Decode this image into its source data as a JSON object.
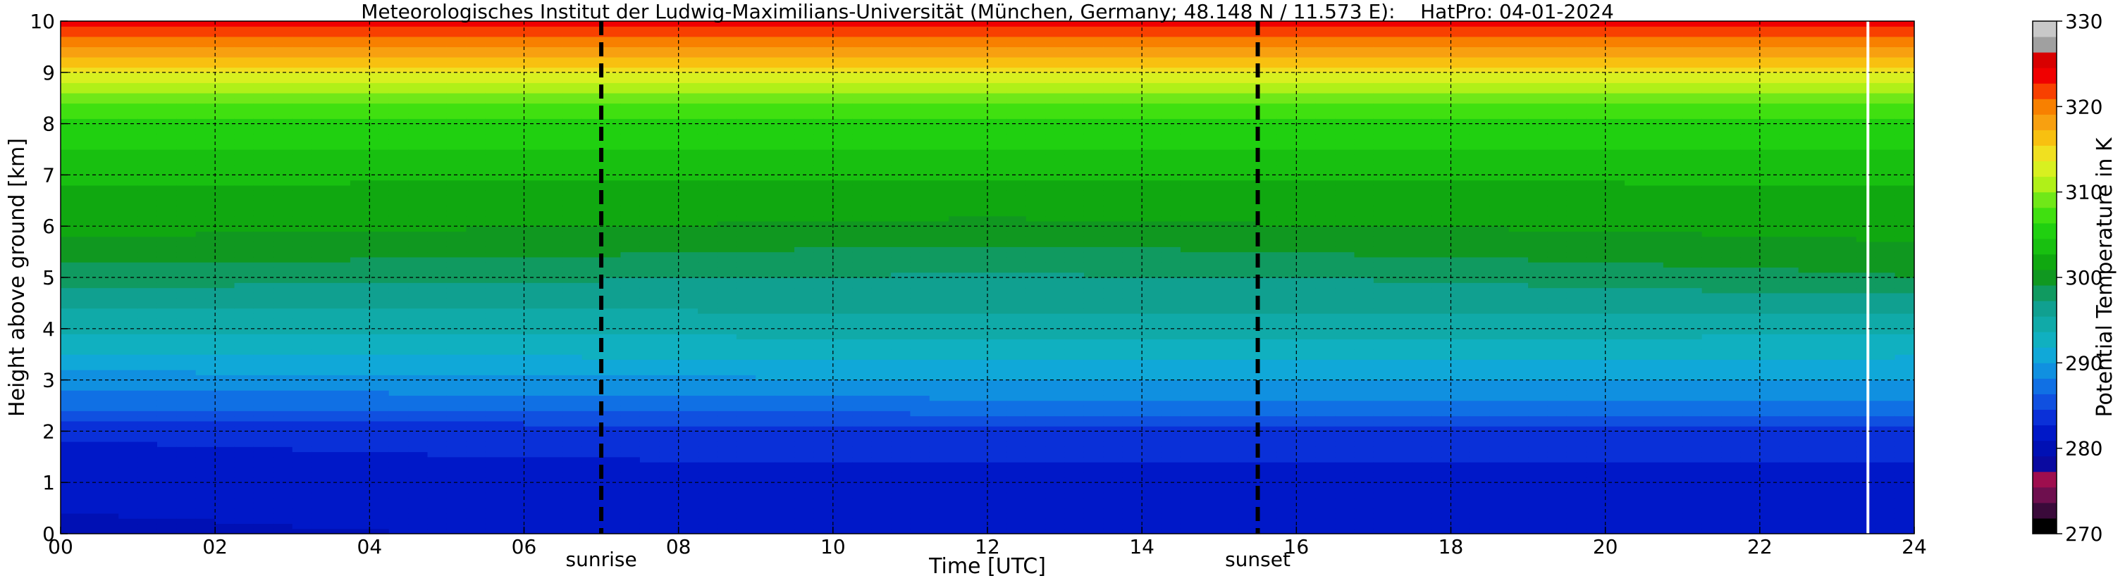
{
  "chart_data": {
    "type": "heatmap",
    "title": "Meteorologisches Institut der Ludwig-Maximilians-Universität (München, Germany; 48.148 N / 11.573 E):    HatPro: 04-01-2024",
    "xlabel": "Time [UTC]",
    "ylabel": "Height above ground [km]",
    "xlim": [
      0,
      24
    ],
    "ylim": [
      0,
      10
    ],
    "x_ticks": [
      "00",
      "02",
      "04",
      "06",
      "08",
      "10",
      "12",
      "14",
      "16",
      "18",
      "20",
      "22",
      "24"
    ],
    "x_tick_values": [
      0,
      2,
      4,
      6,
      8,
      10,
      12,
      14,
      16,
      18,
      20,
      22,
      24
    ],
    "y_ticks": [
      "0",
      "1",
      "2",
      "3",
      "4",
      "5",
      "6",
      "7",
      "8",
      "9",
      "10"
    ],
    "y_tick_values": [
      0,
      1,
      2,
      3,
      4,
      5,
      6,
      7,
      8,
      9,
      10
    ],
    "grid": true,
    "events": [
      {
        "label": "sunrise",
        "time": 7.0
      },
      {
        "label": "sunset",
        "time": 15.5
      }
    ],
    "data_gap_time": 23.4,
    "colorbar": {
      "label": "Potential Temperature in K",
      "range": [
        270,
        330
      ],
      "ticks": [
        "270",
        "280",
        "290",
        "300",
        "310",
        "320",
        "330"
      ],
      "tick_values": [
        270,
        280,
        290,
        300,
        310,
        320,
        330
      ],
      "colors": [
        "#000000",
        "#3a0a3a",
        "#6e0f4e",
        "#9e0e4e",
        "#0a0aa0",
        "#0010b4",
        "#0018c8",
        "#0a30d8",
        "#1050e0",
        "#1070e4",
        "#1090e0",
        "#10a8d8",
        "#10b0c0",
        "#10aaa8",
        "#10a090",
        "#109a60",
        "#109820",
        "#10a810",
        "#18c010",
        "#20d010",
        "#40e010",
        "#70e818",
        "#b0f018",
        "#d8f020",
        "#f0e020",
        "#f8c010",
        "#f8a010",
        "#f88000",
        "#f84000",
        "#f00000",
        "#d80000",
        "#a0a0a0",
        "#c8c8c8"
      ]
    },
    "profiles": [
      {
        "time": 0.0,
        "heights": [
          0,
          0.5,
          1,
          2,
          2.5,
          3,
          3.5,
          4,
          4.5,
          5,
          5.5,
          6,
          7,
          8,
          8.5,
          9,
          9.5,
          10
        ],
        "theta": [
          280.5,
          281,
          281.5,
          283,
          287,
          289,
          292,
          294,
          296,
          298,
          300,
          301.5,
          303,
          306,
          309,
          314,
          319,
          324
        ]
      },
      {
        "time": 6.0,
        "heights": [
          0,
          0.5,
          1,
          2,
          2.5,
          3,
          3.5,
          4,
          4.5,
          5,
          5.5,
          6,
          7,
          8,
          8.5,
          9,
          9.5,
          10
        ],
        "theta": [
          281,
          281.5,
          282,
          283.5,
          287,
          289.5,
          292,
          294,
          296,
          297.5,
          299.5,
          301,
          303,
          306,
          309,
          314,
          319,
          324
        ]
      },
      {
        "time": 12.0,
        "heights": [
          0,
          0.5,
          1,
          2,
          2.5,
          3,
          3.5,
          4,
          4.5,
          5,
          5.5,
          6,
          7,
          8,
          8.5,
          9,
          9.5,
          10
        ],
        "theta": [
          281,
          281.5,
          282,
          284,
          287.5,
          290,
          292.5,
          294.5,
          296,
          297,
          298.5,
          300.5,
          303,
          306,
          309,
          314,
          319,
          324
        ]
      },
      {
        "time": 18.0,
        "heights": [
          0,
          0.5,
          1,
          2,
          2.5,
          3,
          3.5,
          4,
          4.5,
          5,
          5.5,
          6,
          7,
          8,
          8.5,
          9,
          9.5,
          10
        ],
        "theta": [
          281,
          281.5,
          282,
          284,
          287.5,
          290,
          292.5,
          294.5,
          296,
          297.5,
          299.5,
          301,
          303,
          306,
          309,
          314,
          319,
          324
        ]
      },
      {
        "time": 24.0,
        "heights": [
          0,
          0.5,
          1,
          2,
          2.5,
          3,
          3.5,
          4,
          4.5,
          5,
          5.5,
          6,
          7,
          8,
          8.5,
          9,
          9.5,
          10
        ],
        "theta": [
          281,
          281.5,
          282,
          284,
          287.5,
          290,
          292,
          294,
          296.5,
          299,
          300.5,
          301.5,
          303,
          306,
          309,
          314,
          319,
          324
        ]
      }
    ]
  }
}
